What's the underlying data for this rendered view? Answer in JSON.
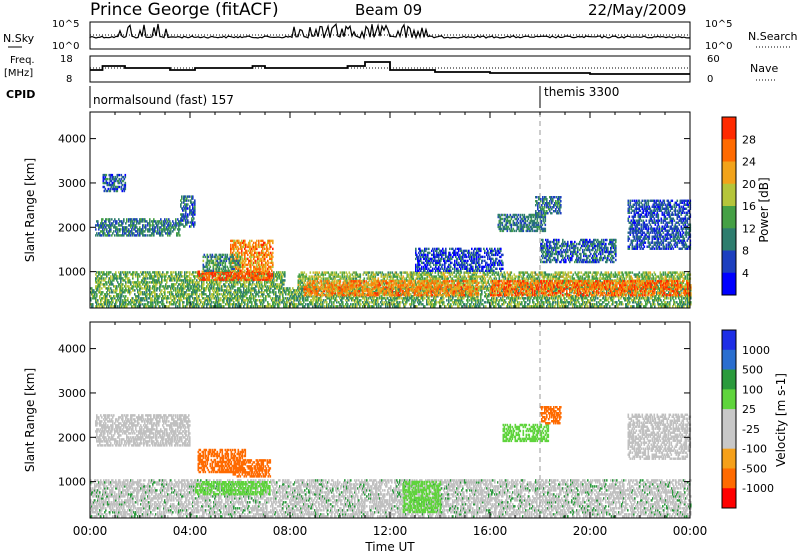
{
  "header": {
    "station": "Prince George (fitACF)",
    "beam": "Beam 09",
    "date": "22/May/2009"
  },
  "nsky_panel": {
    "left_label": "N.Sky",
    "left_ticks": [
      "10^5",
      "10^0"
    ],
    "right_label": "N.Search",
    "right_ticks": [
      "10^5",
      "10^0"
    ]
  },
  "freq_panel": {
    "left_label_1": "Freq.",
    "left_label_2": "[MHz]",
    "left_ticks": [
      "18",
      "8"
    ],
    "right_label": "Nave",
    "right_ticks": [
      "60",
      "0"
    ]
  },
  "cpid": {
    "label": "CPID",
    "modes": [
      {
        "start_hour": 0,
        "text": "normalsound (fast) 157"
      },
      {
        "start_hour": 18,
        "text": "themis 3300"
      }
    ]
  },
  "colors": {
    "power_scale": [
      "#0000ff",
      "#1c3fbf",
      "#2e7d6e",
      "#45a045",
      "#b5c53a",
      "#f2a31a",
      "#ff6a00",
      "#ff2a00"
    ],
    "velocity_scale": [
      "#1e2ee6",
      "#2a6ecf",
      "#2a9a3c",
      "#5fd43c",
      "#c8c8c8",
      "#c8c8c8",
      "#f5a01a",
      "#ff6a00",
      "#ff0000"
    ],
    "ground_scatter": "#c0c0c0"
  },
  "chart_data": [
    {
      "type": "heatmap",
      "name": "power",
      "ylabel": "Slant Range [km]",
      "yticks": [
        1000,
        2000,
        3000,
        4000
      ],
      "ylim": [
        180,
        4600
      ],
      "xlim": [
        0,
        24
      ],
      "colorbar": {
        "label": "Power [dB]",
        "range": [
          0,
          32
        ],
        "ticks": [
          "4",
          "8",
          "12",
          "16",
          "20",
          "24",
          "28"
        ]
      },
      "echo_regions": [
        {
          "t0": 0.0,
          "t1": 24.0,
          "r0": 200,
          "r1": 650,
          "level": 14
        },
        {
          "t0": 0.2,
          "t1": 7.8,
          "r0": 650,
          "r1": 1000,
          "level": 15
        },
        {
          "t0": 4.3,
          "t1": 7.3,
          "r0": 800,
          "r1": 1000,
          "level": 28
        },
        {
          "t0": 5.6,
          "t1": 7.3,
          "r0": 1000,
          "r1": 1700,
          "level": 24
        },
        {
          "t0": 4.5,
          "t1": 6.0,
          "r0": 1000,
          "r1": 1400,
          "level": 12
        },
        {
          "t0": 0.2,
          "t1": 3.6,
          "r0": 1800,
          "r1": 2200,
          "level": 10
        },
        {
          "t0": 3.6,
          "t1": 4.2,
          "r0": 2000,
          "r1": 2700,
          "level": 8
        },
        {
          "t0": 0.5,
          "t1": 1.4,
          "r0": 2800,
          "r1": 3200,
          "level": 8
        },
        {
          "t0": 8.3,
          "t1": 24.0,
          "r0": 600,
          "r1": 1000,
          "level": 16
        },
        {
          "t0": 8.5,
          "t1": 15.5,
          "r0": 450,
          "r1": 800,
          "level": 24
        },
        {
          "t0": 16.0,
          "t1": 24.0,
          "r0": 450,
          "r1": 800,
          "level": 26
        },
        {
          "t0": 13.0,
          "t1": 16.5,
          "r0": 1000,
          "r1": 1500,
          "level": 6
        },
        {
          "t0": 16.3,
          "t1": 18.2,
          "r0": 1900,
          "r1": 2300,
          "level": 10
        },
        {
          "t0": 17.8,
          "t1": 18.8,
          "r0": 2300,
          "r1": 2700,
          "level": 9
        },
        {
          "t0": 18.0,
          "t1": 21.0,
          "r0": 1200,
          "r1": 1700,
          "level": 8
        },
        {
          "t0": 21.5,
          "t1": 24.0,
          "r0": 1500,
          "r1": 2600,
          "level": 7
        }
      ]
    },
    {
      "type": "heatmap",
      "name": "velocity",
      "ylabel": "Slant Range [km]",
      "yticks": [
        1000,
        2000,
        3000,
        4000
      ],
      "ylim": [
        180,
        4600
      ],
      "xlim": [
        0,
        24
      ],
      "xlabel": "Time UT",
      "xticks": [
        "00:00",
        "04:00",
        "08:00",
        "12:00",
        "16:00",
        "20:00",
        "00:00"
      ],
      "colorbar": {
        "label": "Velocity [m s-1]",
        "ticks": [
          "1000",
          "500",
          "100",
          "25",
          "-25",
          "-100",
          "-500",
          "-1000"
        ]
      },
      "echo_regions": [
        {
          "t0": 0.0,
          "t1": 24.0,
          "r0": 200,
          "r1": 1050,
          "vel": 10
        },
        {
          "t0": 4.2,
          "t1": 7.2,
          "r0": 700,
          "r1": 1000,
          "vel": 80
        },
        {
          "t0": 4.3,
          "t1": 6.2,
          "r0": 1200,
          "r1": 1700,
          "vel": -400
        },
        {
          "t0": 5.7,
          "t1": 7.2,
          "r0": 1100,
          "r1": 1500,
          "vel": -350
        },
        {
          "t0": 0.2,
          "t1": 4.0,
          "r0": 1800,
          "r1": 2500,
          "vel": 5
        },
        {
          "t0": 12.5,
          "t1": 14.0,
          "r0": 300,
          "r1": 1000,
          "vel": 90
        },
        {
          "t0": 16.5,
          "t1": 18.3,
          "r0": 1900,
          "r1": 2300,
          "vel": 80
        },
        {
          "t0": 18.0,
          "t1": 18.8,
          "r0": 2300,
          "r1": 2700,
          "vel": -400
        },
        {
          "t0": 21.5,
          "t1": 24.0,
          "r0": 1500,
          "r1": 2500,
          "vel": 5
        }
      ]
    }
  ]
}
